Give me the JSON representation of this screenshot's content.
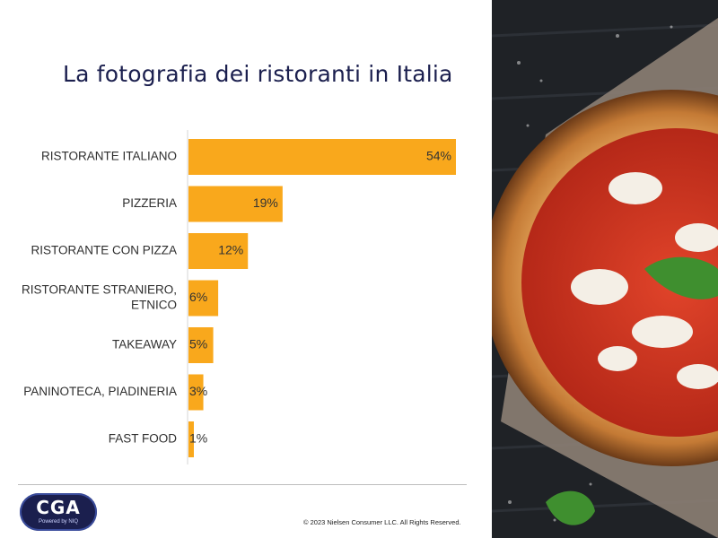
{
  "title": "La fotografia dei ristoranti in Italia",
  "chart_data": {
    "type": "bar",
    "orientation": "horizontal",
    "categories": [
      [
        "RISTORANTE ITALIANO"
      ],
      [
        "PIZZERIA"
      ],
      [
        "RISTORANTE CON PIZZA"
      ],
      [
        "RISTORANTE STRANIERO,",
        "ETNICO"
      ],
      [
        "TAKEAWAY"
      ],
      [
        "PANINOTECA, PIADINERIA"
      ],
      [
        "FAST FOOD"
      ]
    ],
    "values": [
      54,
      19,
      12,
      6,
      5,
      3,
      1
    ],
    "value_labels": [
      "54%",
      "19%",
      "12%",
      "6%",
      "5%",
      "3%",
      "1%"
    ],
    "xlim": [
      0,
      54
    ],
    "bar_color": "#f9a81c",
    "grid": false,
    "legend": "none"
  },
  "footer": {
    "logo_text": "CGA",
    "logo_subtext": "Powered by NIQ",
    "copyright": "© 2023 Nielsen Consumer LLC. All Rights Reserved."
  }
}
